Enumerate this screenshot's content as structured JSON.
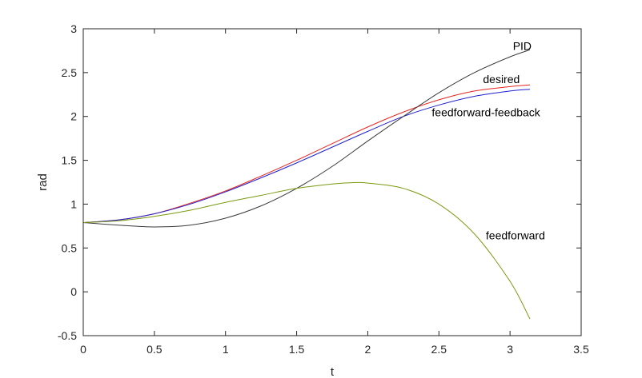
{
  "chart_data": {
    "type": "line",
    "xlabel": "t",
    "ylabel": "rad",
    "xlim": [
      0,
      3.5
    ],
    "ylim": [
      -0.5,
      3
    ],
    "xticks": [
      "0",
      "0.5",
      "1",
      "1.5",
      "2",
      "2.5",
      "3",
      "3.5"
    ],
    "yticks": [
      "-0.5",
      "0",
      "0.5",
      "1",
      "1.5",
      "2",
      "2.5",
      "3"
    ],
    "grid": false,
    "legend": "none",
    "series": [
      {
        "name": "desired",
        "color": "#e8241f",
        "points": [
          [
            0,
            0.79
          ],
          [
            0.25,
            0.82
          ],
          [
            0.5,
            0.89
          ],
          [
            0.75,
            1.01
          ],
          [
            1,
            1.15
          ],
          [
            1.25,
            1.32
          ],
          [
            1.5,
            1.5
          ],
          [
            1.75,
            1.69
          ],
          [
            2,
            1.88
          ],
          [
            2.25,
            2.05
          ],
          [
            2.5,
            2.19
          ],
          [
            2.75,
            2.29
          ],
          [
            3,
            2.34
          ],
          [
            3.14,
            2.36
          ]
        ]
      },
      {
        "name": "feedforward-feedback",
        "color": "#1f1fd0",
        "points": [
          [
            0,
            0.79
          ],
          [
            0.25,
            0.82
          ],
          [
            0.5,
            0.89
          ],
          [
            0.75,
            1.0
          ],
          [
            1,
            1.14
          ],
          [
            1.25,
            1.3
          ],
          [
            1.5,
            1.47
          ],
          [
            1.75,
            1.65
          ],
          [
            2,
            1.83
          ],
          [
            2.25,
            2.0
          ],
          [
            2.5,
            2.13
          ],
          [
            2.75,
            2.23
          ],
          [
            3,
            2.29
          ],
          [
            3.14,
            2.31
          ]
        ]
      },
      {
        "name": "PID",
        "color": "#3a3a3a",
        "points": [
          [
            0,
            0.79
          ],
          [
            0.25,
            0.76
          ],
          [
            0.5,
            0.74
          ],
          [
            0.75,
            0.76
          ],
          [
            1,
            0.84
          ],
          [
            1.25,
            0.98
          ],
          [
            1.5,
            1.18
          ],
          [
            1.75,
            1.43
          ],
          [
            2,
            1.72
          ],
          [
            2.25,
            2.0
          ],
          [
            2.5,
            2.27
          ],
          [
            2.75,
            2.5
          ],
          [
            3,
            2.68
          ],
          [
            3.14,
            2.76
          ]
        ]
      },
      {
        "name": "feedforward",
        "color": "#7a9a10",
        "points": [
          [
            0,
            0.79
          ],
          [
            0.25,
            0.81
          ],
          [
            0.5,
            0.86
          ],
          [
            0.75,
            0.93
          ],
          [
            1,
            1.02
          ],
          [
            1.25,
            1.1
          ],
          [
            1.5,
            1.18
          ],
          [
            1.75,
            1.23
          ],
          [
            1.9,
            1.245
          ],
          [
            2,
            1.24
          ],
          [
            2.25,
            1.18
          ],
          [
            2.5,
            1.0
          ],
          [
            2.75,
            0.66
          ],
          [
            3,
            0.12
          ],
          [
            3.14,
            -0.31
          ]
        ]
      }
    ],
    "annotations": [
      {
        "text": "PID",
        "x": 3.02,
        "y": 2.76
      },
      {
        "text": "desired",
        "x": 2.81,
        "y": 2.38
      },
      {
        "text": "feedforward-feedback",
        "x": 2.45,
        "y": 2.0
      },
      {
        "text": "feedforward",
        "x": 2.83,
        "y": 0.6
      }
    ]
  }
}
